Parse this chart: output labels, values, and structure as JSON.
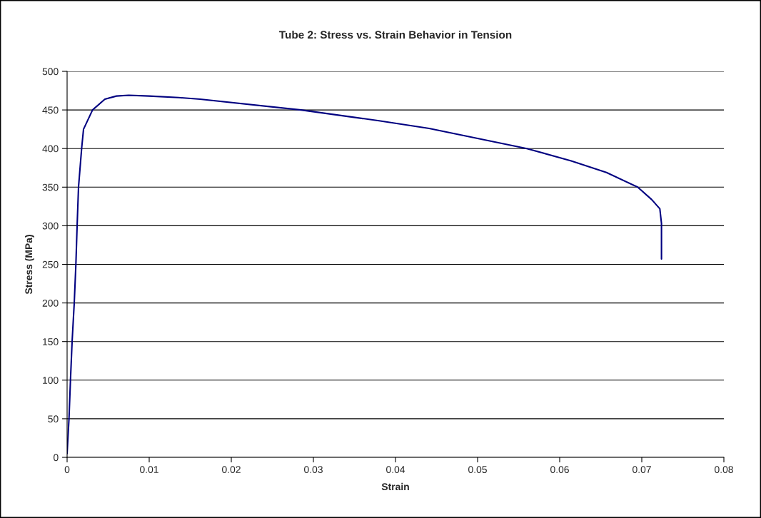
{
  "chart_data": {
    "type": "line",
    "title": "Tube 2: Stress vs. Strain Behavior in Tension",
    "xlabel": "Strain",
    "ylabel": "Stress (MPa)",
    "series": [
      {
        "color": "#000080",
        "x": [
          0,
          0.00023,
          0.00041,
          0.00061,
          0.00087,
          0.00107,
          0.00122,
          0.00139,
          0.00177,
          0.002,
          0.0031,
          0.0046,
          0.006,
          0.0075,
          0.01,
          0.0136,
          0.0162,
          0.0285,
          0.038,
          0.0441,
          0.056,
          0.0614,
          0.0657,
          0.0695,
          0.0712,
          0.0722,
          0.0724,
          0.0724
        ],
        "values": [
          5,
          50,
          100,
          150,
          200,
          250,
          300,
          350,
          400,
          425,
          450,
          464,
          468,
          469,
          468,
          466,
          464,
          450,
          436,
          426,
          400,
          384,
          369,
          350,
          334,
          322,
          303,
          257
        ]
      }
    ],
    "xlim": [
      0,
      0.08
    ],
    "xticks": [
      0,
      0.01,
      0.02,
      0.03,
      0.04,
      0.05,
      0.06,
      0.07,
      0.08
    ],
    "ylim": [
      0,
      500
    ],
    "yticks": [
      0,
      50,
      100,
      150,
      200,
      250,
      300,
      350,
      400,
      450,
      500
    ],
    "grid": "y",
    "marker": "none",
    "line_style": "solid"
  }
}
